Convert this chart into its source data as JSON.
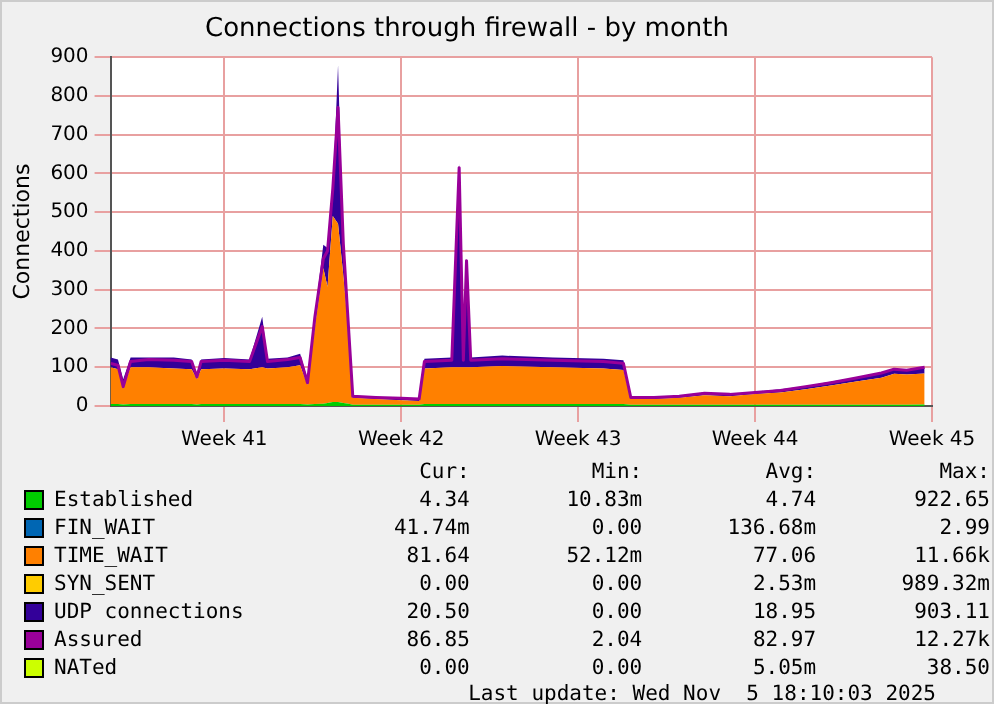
{
  "chart_data": {
    "type": "area",
    "title": "Connections through firewall - by month",
    "ylabel": "Connections",
    "x": [
      "2025-10-01T12:00",
      "2025-10-01T19:00",
      "2025-10-02T00:00",
      "2025-10-02T07:00",
      "2025-10-03T00:00",
      "2025-10-04T00:00",
      "2025-10-04T17:00",
      "2025-10-04T22:00",
      "2025-10-05T02:00",
      "2025-10-06T00:00",
      "2025-10-07T00:00",
      "2025-10-07T12:00",
      "2025-10-07T17:00",
      "2025-10-08T12:00",
      "2025-10-09T00:00",
      "2025-10-09T07:00",
      "2025-10-09T14:00",
      "2025-10-09T22:00",
      "2025-10-10T02:00",
      "2025-10-10T07:00",
      "2025-10-10T12:00",
      "2025-10-10T17:00",
      "2025-10-10T22:00",
      "2025-10-11T02:00",
      "2025-10-12T00:00",
      "2025-10-13T00:00",
      "2025-10-13T17:00",
      "2025-10-13T22:00",
      "2025-10-15T00:00",
      "2025-10-15T07:00",
      "2025-10-15T11:00",
      "2025-10-15T14:00",
      "2025-10-15T18:00",
      "2025-10-17T00:00",
      "2025-10-19T00:00",
      "2025-10-21T00:00",
      "2025-10-21T19:00",
      "2025-10-22T02:00",
      "2025-10-23T00:00",
      "2025-10-24T00:00",
      "2025-10-25T00:00",
      "2025-10-26T00:00",
      "2025-10-27T00:00",
      "2025-10-28T00:00",
      "2025-10-29T00:00",
      "2025-10-30T00:00",
      "2025-10-31T00:00",
      "2025-11-01T00:00",
      "2025-11-01T12:00",
      "2025-11-02T00:00",
      "2025-11-02T17:00"
    ],
    "xlim": [
      "2025-10-01T12:00",
      "2025-11-03T00:00"
    ],
    "xticks": [
      {
        "value": "2025-10-06",
        "label": "Week 41"
      },
      {
        "value": "2025-10-13",
        "label": "Week 42"
      },
      {
        "value": "2025-10-20",
        "label": "Week 43"
      },
      {
        "value": "2025-10-27",
        "label": "Week 44"
      },
      {
        "value": "2025-11-03",
        "label": "Week 45"
      }
    ],
    "ylim": [
      0,
      900
    ],
    "yticks": [
      0,
      100,
      200,
      300,
      400,
      500,
      600,
      700,
      800,
      900
    ],
    "stacked": true,
    "grid": true,
    "legend": "bottom",
    "series": [
      {
        "name": "Established",
        "color": "#00cc00",
        "values": [
          5,
          5,
          4,
          5,
          5,
          5,
          5,
          4,
          5,
          5,
          5,
          5,
          5,
          5,
          5,
          4,
          5,
          6,
          8,
          10,
          10,
          8,
          6,
          3,
          3,
          3,
          3,
          5,
          5,
          5,
          5,
          5,
          5,
          5,
          5,
          5,
          5,
          3,
          3,
          3,
          3,
          3,
          3,
          3,
          3,
          3,
          3,
          3,
          3,
          3,
          4
        ]
      },
      {
        "name": "FIN_WAIT",
        "type": "line",
        "color": "#0066b3",
        "values": [
          null,
          null,
          null,
          null,
          null,
          null,
          null,
          null,
          null,
          null,
          null,
          null,
          null,
          null,
          null,
          null,
          null,
          null,
          null,
          null,
          null,
          null,
          null,
          null,
          null,
          null,
          null,
          null,
          null,
          null,
          null,
          null,
          null,
          null,
          null,
          null,
          null,
          null,
          null,
          null,
          null,
          null,
          null,
          null,
          null,
          null,
          null,
          null,
          null,
          null,
          null
        ]
      },
      {
        "name": "TIME_WAIT",
        "color": "#ff8000",
        "values": [
          95,
          90,
          45,
          95,
          95,
          92,
          90,
          65,
          90,
          92,
          90,
          95,
          92,
          95,
          100,
          50,
          200,
          350,
          300,
          480,
          460,
          330,
          180,
          18,
          15,
          12,
          10,
          92,
          95,
          95,
          95,
          95,
          95,
          98,
          95,
          92,
          88,
          15,
          15,
          18,
          25,
          22,
          28,
          32,
          40,
          50,
          60,
          70,
          80,
          78,
          80
        ]
      },
      {
        "name": "SYN_SENT",
        "type": "line",
        "color": "#ffcc00",
        "values": [
          null,
          null,
          null,
          null,
          null,
          null,
          null,
          null,
          null,
          null,
          null,
          null,
          null,
          null,
          null,
          null,
          null,
          null,
          null,
          null,
          null,
          null,
          null,
          null,
          null,
          null,
          null,
          null,
          null,
          null,
          null,
          null,
          null,
          null,
          null,
          null,
          null,
          null,
          null,
          null,
          null,
          null,
          null,
          null,
          null,
          null,
          null,
          null,
          null,
          null,
          null
        ]
      },
      {
        "name": "UDP connections",
        "color": "#330099",
        "values": [
          25,
          25,
          20,
          25,
          25,
          28,
          25,
          15,
          25,
          27,
          25,
          130,
          25,
          25,
          30,
          15,
          30,
          60,
          100,
          60,
          410,
          60,
          20,
          5,
          5,
          5,
          5,
          25,
          25,
          525,
          25,
          270,
          25,
          27,
          25,
          25,
          25,
          5,
          5,
          6,
          7,
          6,
          6,
          8,
          8,
          10,
          10,
          12,
          12,
          12,
          15
        ]
      },
      {
        "name": "Assured",
        "type": "line",
        "color": "#990099",
        "values": [
          110,
          105,
          50,
          115,
          120,
          118,
          115,
          75,
          115,
          118,
          115,
          205,
          115,
          120,
          125,
          60,
          230,
          380,
          400,
          560,
          770,
          420,
          200,
          25,
          22,
          20,
          18,
          115,
          118,
          615,
          118,
          375,
          118,
          122,
          118,
          115,
          110,
          22,
          22,
          25,
          33,
          30,
          35,
          40,
          50,
          60,
          72,
          85,
          95,
          92,
          100
        ]
      },
      {
        "name": "NATed",
        "type": "line",
        "color": "#ccff00",
        "values": [
          null,
          null,
          null,
          null,
          null,
          null,
          null,
          null,
          null,
          null,
          null,
          null,
          null,
          null,
          null,
          null,
          null,
          null,
          null,
          null,
          null,
          null,
          null,
          null,
          null,
          null,
          null,
          null,
          null,
          null,
          null,
          null,
          null,
          null,
          null,
          null,
          null,
          null,
          null,
          null,
          null,
          null,
          null,
          null,
          null,
          null,
          null,
          null,
          null,
          null,
          null
        ]
      }
    ],
    "annotations": [
      "Cur:",
      "Min:",
      "Avg:",
      "Max:",
      "4.34",
      "10.83m",
      "4.74",
      "922.65",
      "41.74m",
      "0.00",
      "136.68m",
      "2.99",
      "81.64",
      "52.12m",
      "77.06",
      "11.66k",
      "0.00",
      "0.00",
      "2.53m",
      "989.32m",
      "20.50",
      "0.00",
      "18.95",
      "903.11",
      "86.85",
      "2.04",
      "82.97",
      "12.27k",
      "0.00",
      "0.00",
      "5.05m",
      "38.50",
      "Last update: Wed Nov  5 18:10:03 2025"
    ]
  }
}
